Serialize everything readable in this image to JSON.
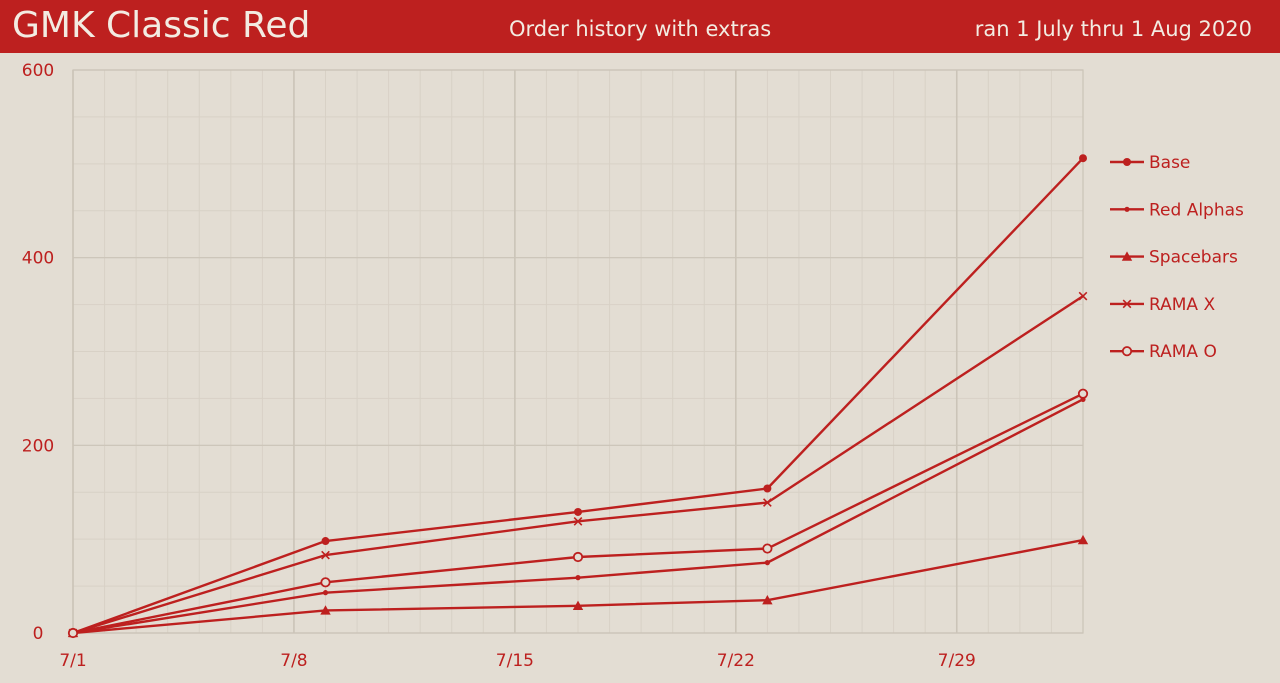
{
  "header": {
    "title": "GMK Classic Red",
    "subtitle": "Order history with extras",
    "date_range": "ran 1 July thru 1 Aug 2020"
  },
  "colors": {
    "accent": "#bd201f",
    "background": "#e3ddd3",
    "grid_major": "#cbc4b8",
    "grid_minor": "#d8d1c6",
    "header_text": "#f3ece2"
  },
  "chart_data": {
    "type": "line",
    "x_tick_labels": [
      "7/1",
      "7/8",
      "7/15",
      "7/22",
      "7/29"
    ],
    "x_ticks": [
      1,
      8,
      15,
      22,
      29
    ],
    "xlim": [
      1,
      33
    ],
    "ylim": [
      0,
      600
    ],
    "y_ticks": [
      0,
      200,
      400,
      600
    ],
    "grid": true,
    "legend_position": "right",
    "x": [
      1,
      9,
      17,
      23,
      33
    ],
    "series": [
      {
        "name": "Base",
        "marker": "filled-circle",
        "values": [
          0,
          98,
          129,
          154,
          506
        ]
      },
      {
        "name": "Red Alphas",
        "marker": "small-dot",
        "values": [
          0,
          43,
          59,
          75,
          249
        ]
      },
      {
        "name": "Spacebars",
        "marker": "triangle",
        "values": [
          0,
          24,
          29,
          35,
          99
        ]
      },
      {
        "name": "RAMA X",
        "marker": "x",
        "values": [
          0,
          83,
          119,
          139,
          359
        ]
      },
      {
        "name": "RAMA O",
        "marker": "open-circle",
        "values": [
          0,
          54,
          81,
          90,
          255
        ]
      }
    ]
  }
}
